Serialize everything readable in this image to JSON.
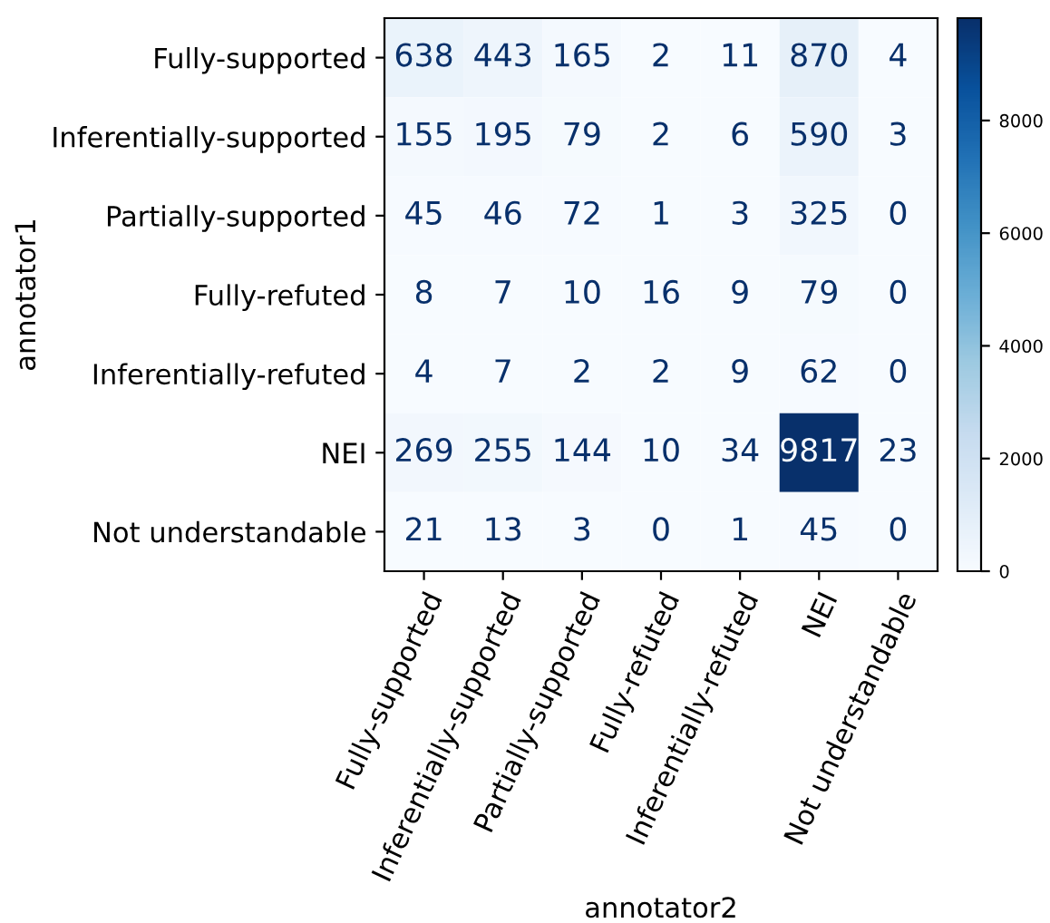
{
  "chart_data": {
    "type": "heatmap",
    "xlabel": "annotator2",
    "ylabel": "annotator1",
    "categories": [
      "Fully-supported",
      "Inferentially-supported",
      "Partially-supported",
      "Fully-refuted",
      "Inferentially-refuted",
      "NEI",
      "Not understandable"
    ],
    "y_categories": [
      "Fully-supported",
      "Inferentially-supported",
      "Partially-supported",
      "Fully-refuted",
      "Inferentially-refuted",
      "NEI",
      "Not understandable"
    ],
    "cells": [
      [
        638,
        443,
        165,
        2,
        11,
        870,
        4
      ],
      [
        155,
        195,
        79,
        2,
        6,
        590,
        3
      ],
      [
        45,
        46,
        72,
        1,
        3,
        325,
        0
      ],
      [
        8,
        7,
        10,
        16,
        9,
        79,
        0
      ],
      [
        4,
        7,
        2,
        2,
        9,
        62,
        0
      ],
      [
        269,
        255,
        144,
        10,
        34,
        9817,
        23
      ],
      [
        21,
        13,
        3,
        0,
        1,
        45,
        0
      ]
    ],
    "clim": [
      0,
      9817
    ],
    "cticks": [
      0,
      2000,
      4000,
      6000,
      8000
    ],
    "data_labels": true
  }
}
